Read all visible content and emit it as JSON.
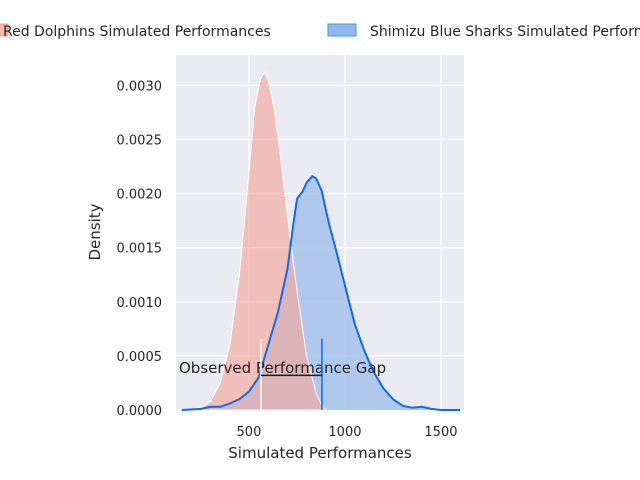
{
  "chart_data": {
    "type": "area",
    "title": "",
    "xlabel": "Simulated Performances",
    "ylabel": "Density",
    "xlim": [
      120,
      1620
    ],
    "ylim": [
      0,
      0.00328
    ],
    "x_ticks": [
      500,
      1000,
      1500
    ],
    "y_ticks": [
      0,
      0.0005,
      0.001,
      0.0015,
      0.002,
      0.0025,
      0.003
    ],
    "y_tick_labels": [
      "0.0000",
      "0.0005",
      "0.0010",
      "0.0015",
      "0.0020",
      "0.0025",
      "0.0030"
    ],
    "grid": true,
    "legend": {
      "position": "top-outside",
      "entries": [
        "Red Dolphins Simulated Performances",
        "Shimizu Blue Sharks Simulated Performances"
      ]
    },
    "series": [
      {
        "name": "Red Dolphins Simulated Performances",
        "color": "#f4a79a",
        "x": [
          180,
          250,
          300,
          350,
          400,
          450,
          500,
          530,
          560,
          580,
          600,
          630,
          660,
          700,
          750,
          800,
          850,
          880,
          900
        ],
        "y": [
          0.0,
          2e-05,
          8e-05,
          0.00025,
          0.0006,
          0.00125,
          0.0022,
          0.0028,
          0.00306,
          0.00312,
          0.00305,
          0.0028,
          0.0024,
          0.0018,
          0.0011,
          0.0005,
          0.00015,
          4e-05,
          0.0
        ]
      },
      {
        "name": "Shimizu Blue Sharks Simulated Performances",
        "color": "#0a6cf0",
        "x": [
          150,
          250,
          300,
          350,
          400,
          450,
          500,
          550,
          600,
          650,
          700,
          730,
          750,
          780,
          800,
          830,
          850,
          880,
          900,
          920,
          950,
          1000,
          1050,
          1100,
          1150,
          1200,
          1250,
          1300,
          1350,
          1400,
          1450,
          1500,
          1600
        ],
        "y": [
          0.0,
          1e-05,
          3e-05,
          3e-05,
          6e-05,
          0.0001,
          0.00017,
          0.0003,
          0.0006,
          0.0009,
          0.0013,
          0.0017,
          0.00195,
          0.00202,
          0.0021,
          0.00216,
          0.00214,
          0.00202,
          0.00185,
          0.0017,
          0.0015,
          0.00115,
          0.0008,
          0.00055,
          0.00035,
          0.0002,
          0.0001,
          4e-05,
          2e-05,
          3e-05,
          1e-05,
          0.0,
          0.0
        ]
      }
    ],
    "annotation": {
      "text": "Observed Performance Gap",
      "x_start": 563,
      "x_end": 880,
      "y": 0.00032,
      "red_marker_height": 0.00065,
      "blue_marker_height": 0.00066
    }
  }
}
